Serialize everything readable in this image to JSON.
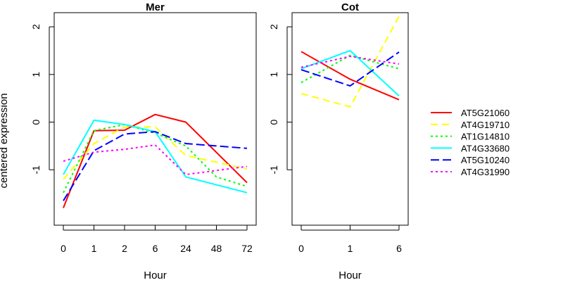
{
  "ylabel": "centered expression",
  "chart_data": [
    {
      "type": "line",
      "title": "Mer",
      "xlabel": "Hour",
      "ylabel": "centered expression",
      "categories": [
        "0",
        "1",
        "2",
        "6",
        "24",
        "48",
        "72"
      ],
      "ylim": [
        -2,
        2.4
      ],
      "yticks": [
        -1,
        0,
        1,
        2
      ],
      "series": [
        {
          "name": "AT5G21060",
          "color": "#ff0000",
          "dash": "solid",
          "values": [
            -1.8,
            -0.18,
            -0.17,
            0.16,
            0.0,
            null,
            -1.27
          ]
        },
        {
          "name": "AT4G19710",
          "color": "#ffff00",
          "dash": "dashed",
          "values": [
            -1.2,
            -0.45,
            -0.1,
            -0.1,
            -0.7,
            null,
            -0.98
          ]
        },
        {
          "name": "AT1G14810",
          "color": "#00ff00",
          "dash": "dotted",
          "values": [
            -1.48,
            -0.18,
            -0.05,
            -0.23,
            -0.5,
            -1.15,
            -1.35
          ]
        },
        {
          "name": "AT4G33680",
          "color": "#00ffff",
          "dash": "solid",
          "values": [
            -1.1,
            0.04,
            -0.05,
            -0.2,
            -1.15,
            null,
            -1.48
          ]
        },
        {
          "name": "AT5G10240",
          "color": "#0000ff",
          "dash": "longdash",
          "values": [
            -1.65,
            -0.6,
            -0.25,
            -0.2,
            -0.45,
            null,
            -0.55
          ]
        },
        {
          "name": "AT4G31990",
          "color": "#ff00ff",
          "dash": "dotted",
          "values": [
            -0.82,
            -0.63,
            -0.57,
            -0.48,
            -1.1,
            null,
            -0.93
          ]
        }
      ]
    },
    {
      "type": "line",
      "title": "Cot",
      "xlabel": "Hour",
      "ylabel": "",
      "categories": [
        "0",
        "1",
        "6"
      ],
      "ylim": [
        -2,
        2.4
      ],
      "yticks": [
        -1,
        0,
        1,
        2
      ],
      "series": [
        {
          "name": "AT5G21060",
          "color": "#ff0000",
          "dash": "solid",
          "values": [
            1.48,
            0.9,
            0.47
          ]
        },
        {
          "name": "AT4G19710",
          "color": "#ffff00",
          "dash": "dashed",
          "values": [
            0.6,
            0.32,
            2.22
          ]
        },
        {
          "name": "AT1G14810",
          "color": "#00ff00",
          "dash": "dotted",
          "values": [
            0.83,
            1.4,
            1.12
          ]
        },
        {
          "name": "AT4G33680",
          "color": "#00ffff",
          "dash": "solid",
          "values": [
            1.12,
            1.5,
            0.55
          ]
        },
        {
          "name": "AT5G10240",
          "color": "#0000ff",
          "dash": "longdash",
          "values": [
            1.1,
            0.76,
            1.47
          ]
        },
        {
          "name": "AT4G31990",
          "color": "#ff00ff",
          "dash": "dotted",
          "values": [
            1.15,
            1.38,
            1.22
          ]
        }
      ]
    }
  ],
  "legend": {
    "placement": "right",
    "items": [
      "AT5G21060",
      "AT4G19710",
      "AT1G14810",
      "AT4G33680",
      "AT5G10240",
      "AT4G31990"
    ]
  }
}
